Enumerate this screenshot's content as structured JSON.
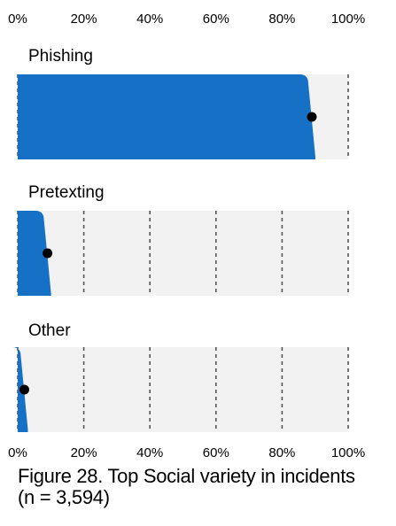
{
  "chart_data": {
    "type": "bar",
    "categories": [
      "Phishing",
      "Pretexting",
      "Other"
    ],
    "values": [
      89,
      9,
      2
    ],
    "xlim": [
      0,
      100
    ],
    "x_ticks": [
      "0%",
      "20%",
      "40%",
      "60%",
      "80%",
      "100%"
    ],
    "grid": true,
    "colors": {
      "bar": "#1570C6",
      "track": "#F2F2F2",
      "point": "#000000",
      "grid": "#555555"
    }
  },
  "caption": {
    "line1": "Figure 28. Top Social variety in incidents",
    "line2": "(n = 3,594)"
  }
}
